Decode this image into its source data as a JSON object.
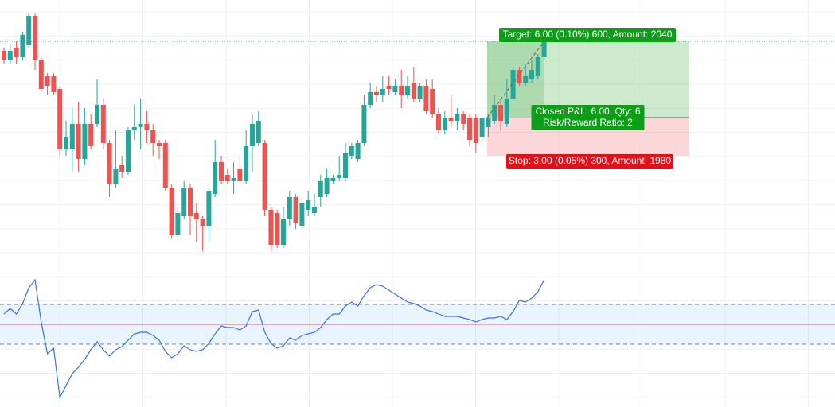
{
  "chart_data": {
    "type": "candlestick",
    "up_color": "#26a69a",
    "down_color": "#ef5350",
    "ylim": [
      5987.5,
      6009.25
    ],
    "ohlc": [
      [
        6005.25,
        6005.5,
        6004.25,
        6004.5
      ],
      [
        6004.5,
        6005.75,
        6004.25,
        6005.25
      ],
      [
        6005.5,
        6006,
        6004.25,
        6004.75
      ],
      [
        6004.75,
        6006.75,
        6004.5,
        6006.5
      ],
      [
        6005.75,
        6008.25,
        6005.5,
        6008
      ],
      [
        6008,
        6008.25,
        6003.75,
        6004.5
      ],
      [
        6004.5,
        6004.75,
        6002,
        6002.25
      ],
      [
        6003.25,
        6003.5,
        6001.75,
        6002.5
      ],
      [
        6003.25,
        6003.5,
        6001.75,
        6002
      ],
      [
        6002.25,
        6002.5,
        5997,
        5997.5
      ],
      [
        5997.5,
        5999.75,
        5997,
        5998.5
      ],
      [
        5997.5,
        6000.75,
        5995.75,
        5999.5
      ],
      [
        5999.5,
        6001.25,
        5995.75,
        5996.75
      ],
      [
        5996.75,
        6000.75,
        5996.25,
        5999.5
      ],
      [
        5999.5,
        6000.25,
        5997.5,
        5997.75
      ],
      [
        5999.5,
        6003,
        5999.25,
        6001
      ],
      [
        6001,
        6001.5,
        5997.5,
        5998
      ],
      [
        5998,
        5998.25,
        5993.75,
        5994.75
      ],
      [
        5994.75,
        5999,
        5994.5,
        5996
      ],
      [
        5996.25,
        5997,
        5995.25,
        5995.75
      ],
      [
        5995.75,
        5999.25,
        5995.5,
        5999
      ],
      [
        5999,
        6001,
        5998.25,
        5999.25
      ],
      [
        5999.25,
        6001.5,
        5997.5,
        5999.5
      ],
      [
        5999.5,
        6000.5,
        5998,
        5999
      ],
      [
        5999,
        5999.5,
        5997,
        5998
      ],
      [
        5998,
        5998.25,
        5996.75,
        5997.75
      ],
      [
        5998,
        5998.25,
        5994.25,
        5994.5
      ],
      [
        5994.5,
        5994.75,
        5990.5,
        5990.75
      ],
      [
        5990.75,
        5993,
        5990.5,
        5992.5
      ],
      [
        5992.25,
        5995,
        5992,
        5994.5
      ],
      [
        5994.5,
        5994.75,
        5990.75,
        5992.25
      ],
      [
        5992.5,
        5993.25,
        5990.25,
        5992
      ],
      [
        5992,
        5992.25,
        5989.5,
        5991.5
      ],
      [
        5991.5,
        5994.5,
        5990.25,
        5994.25
      ],
      [
        5994,
        5998.25,
        5993.75,
        5996.5
      ],
      [
        5996.5,
        5997,
        5994.75,
        5995
      ],
      [
        5995.5,
        5996,
        5994.75,
        5995
      ],
      [
        5995,
        5996.5,
        5994,
        5995.25
      ],
      [
        5996,
        5997,
        5994.75,
        5995
      ],
      [
        5995,
        5999,
        5994.75,
        5997.75
      ],
      [
        5997.75,
        6000.25,
        5995.75,
        5999.5
      ],
      [
        5998,
        6000.5,
        5997.75,
        5999.75
      ],
      [
        5998,
        5998.25,
        5992.25,
        5992.75
      ],
      [
        5992.75,
        5993,
        5989.5,
        5990
      ],
      [
        5992.5,
        5992.75,
        5989.75,
        5990
      ],
      [
        5990,
        5993,
        5989.75,
        5992
      ],
      [
        5992,
        5994.25,
        5991.5,
        5993.75
      ],
      [
        5993.75,
        5994,
        5991.25,
        5991.75
      ],
      [
        5991.5,
        5993.75,
        5991,
        5993.25
      ],
      [
        5992.75,
        5994.25,
        5992.25,
        5993.5
      ],
      [
        5992.5,
        5994,
        5992.25,
        5993
      ],
      [
        5993.75,
        5995.5,
        5993,
        5995
      ],
      [
        5994,
        5996,
        5993.75,
        5995.25
      ],
      [
        5995,
        5995.5,
        5994.75,
        5995.25
      ],
      [
        5995.25,
        5997,
        5995,
        5995.5
      ],
      [
        5995.25,
        5998,
        5995,
        5997.25
      ],
      [
        5997,
        5998,
        5996.75,
        5997.75
      ],
      [
        5996.75,
        5998.25,
        5996.5,
        5998
      ],
      [
        5998,
        6001.75,
        5997.75,
        6001
      ],
      [
        6001,
        6002.75,
        6000.75,
        6002
      ],
      [
        6002,
        6002.5,
        6001.25,
        6001.75
      ],
      [
        6001.75,
        6003.25,
        6001.25,
        6002.25
      ],
      [
        6002.5,
        6003.25,
        6001.75,
        6002.25
      ],
      [
        6002,
        6003,
        6001.75,
        6002.5
      ],
      [
        6002.5,
        6003.75,
        6000.75,
        6001.75
      ],
      [
        6001.75,
        6003.25,
        6001.5,
        6002.5
      ],
      [
        6002.75,
        6004,
        6001.25,
        6001.5
      ],
      [
        6001.5,
        6002.75,
        6001.25,
        6002.5
      ],
      [
        6002.5,
        6003,
        6000.25,
        6000.5
      ],
      [
        6002.25,
        6003,
        6000,
        6000.25
      ],
      [
        6000.25,
        6000.75,
        5998.75,
        5999
      ],
      [
        5999,
        6000.5,
        5998.75,
        6000
      ],
      [
        6000,
        6001.75,
        5999.25,
        5999.75
      ],
      [
        5999.75,
        6000.75,
        5999,
        6000.25
      ],
      [
        6000.25,
        6000.5,
        5999,
        5999.5
      ],
      [
        6000,
        6000.25,
        5997.75,
        5998.25
      ],
      [
        6000,
        6000.25,
        5997.25,
        5998
      ],
      [
        5998.5,
        6000.25,
        5998,
        6000
      ],
      [
        5999.25,
        6000.25,
        5998.5,
        6000
      ],
      [
        5999.75,
        6001.75,
        5999.5,
        6001
      ],
      [
        6001,
        6001.5,
        5999,
        5999.75
      ],
      [
        5999.5,
        6003,
        5999.25,
        6001.5
      ],
      [
        6001.5,
        6004,
        6001.25,
        6003.75
      ],
      [
        6003.75,
        6004,
        6002.5,
        6002.75
      ],
      [
        6002.75,
        6004.25,
        6002.5,
        6003.25
      ],
      [
        6003,
        6004.5,
        6002.75,
        6003.75
      ],
      [
        6003.25,
        6005,
        6003,
        6004.75
      ],
      [
        6004.75,
        6006.25,
        6004.5,
        6006
      ]
    ],
    "position": {
      "entry": 6000,
      "target": 6006,
      "stop": 5997,
      "target_label": "Target: 6.00 (0.10%) 600, Amount: 2040",
      "pnl_label": "Closed P&L: 6.00, Qty: 6",
      "ratio_label": "Risk/Reward Ratio: 2",
      "stop_label": "Stop: 3.00 (0.05%) 300, Amount: 1980",
      "target_color": "#4caf50",
      "stop_color": "#f23645"
    },
    "rsi": {
      "type": "line",
      "color": "#3d6fe0",
      "ylim": [
        8.4,
        77.2
      ],
      "levels": [
        60,
        50,
        40
      ],
      "values": [
        55.2,
        58,
        55.2,
        60.4,
        68.4,
        72.4,
        51.2,
        35.2,
        38,
        13.2,
        19.2,
        25.2,
        28.4,
        32.4,
        37.2,
        41.2,
        37.2,
        34,
        37.2,
        38.8,
        42,
        45.2,
        46,
        46,
        44.4,
        42,
        36.4,
        33.2,
        35.2,
        39.2,
        37.2,
        36.4,
        37.2,
        40.4,
        45.2,
        49.2,
        48.4,
        48.4,
        47.2,
        49.2,
        56.4,
        57.2,
        46,
        40.4,
        38,
        39.2,
        43.2,
        42,
        44.4,
        45.2,
        46,
        48.4,
        52.4,
        55.2,
        55.2,
        59.2,
        61.2,
        59.2,
        64.4,
        68.4,
        70,
        69.2,
        67.2,
        65.2,
        63.2,
        61.2,
        60.4,
        59.2,
        57.2,
        56.4,
        55.2,
        54,
        54,
        54,
        53.2,
        52.4,
        51.2,
        52.4,
        53.2,
        53.2,
        54,
        52.4,
        56.4,
        62,
        61.2,
        63.2,
        66.4,
        72.4
      ]
    }
  }
}
